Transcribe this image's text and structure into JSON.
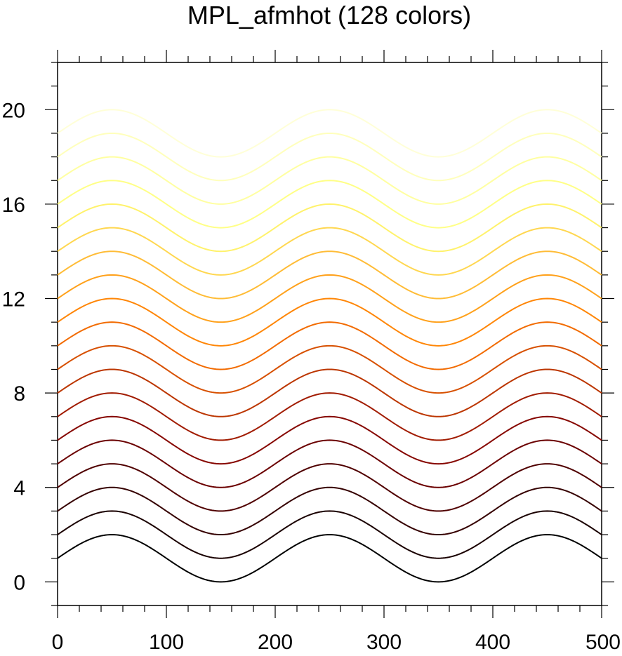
{
  "chart_data": {
    "type": "line",
    "title": "MPL_afmhot (128 colors)",
    "xlabel": "",
    "ylabel": "",
    "xlim": [
      0,
      500
    ],
    "ylim": [
      -1,
      22
    ],
    "x_ticks": [
      0,
      100,
      200,
      300,
      400,
      500
    ],
    "x_tick_labels": [
      "0",
      "100",
      "200",
      "300",
      "400",
      "500"
    ],
    "y_ticks": [
      0,
      4,
      8,
      12,
      16,
      20
    ],
    "y_tick_labels": [
      "0",
      "4",
      "8",
      "12",
      "16",
      "20"
    ],
    "x_minor_step": 20,
    "y_minor_step": 1,
    "grid": false,
    "curve_model": "y = offset + 1 + sin(2*pi*(x - 0)/200)",
    "period": 200,
    "amplitude": 1,
    "series": [
      {
        "offset": 0,
        "color": "#000000"
      },
      {
        "offset": 1,
        "color": "#1a0000"
      },
      {
        "offset": 2,
        "color": "#350000"
      },
      {
        "offset": 3,
        "color": "#500000"
      },
      {
        "offset": 4,
        "color": "#6b0000"
      },
      {
        "offset": 5,
        "color": "#860600"
      },
      {
        "offset": 6,
        "color": "#a11b00"
      },
      {
        "offset": 7,
        "color": "#bc3600"
      },
      {
        "offset": 8,
        "color": "#d75000"
      },
      {
        "offset": 9,
        "color": "#f26b00"
      },
      {
        "offset": 10,
        "color": "#ff8606"
      },
      {
        "offset": 11,
        "color": "#ffa11b"
      },
      {
        "offset": 12,
        "color": "#ffbc36"
      },
      {
        "offset": 13,
        "color": "#ffd750"
      },
      {
        "offset": 14,
        "color": "#fff26b"
      },
      {
        "offset": 15,
        "color": "#ffff86"
      },
      {
        "offset": 16,
        "color": "#ffffa1"
      },
      {
        "offset": 17,
        "color": "#ffffbc"
      },
      {
        "offset": 18,
        "color": "#ffffd7"
      }
    ]
  }
}
